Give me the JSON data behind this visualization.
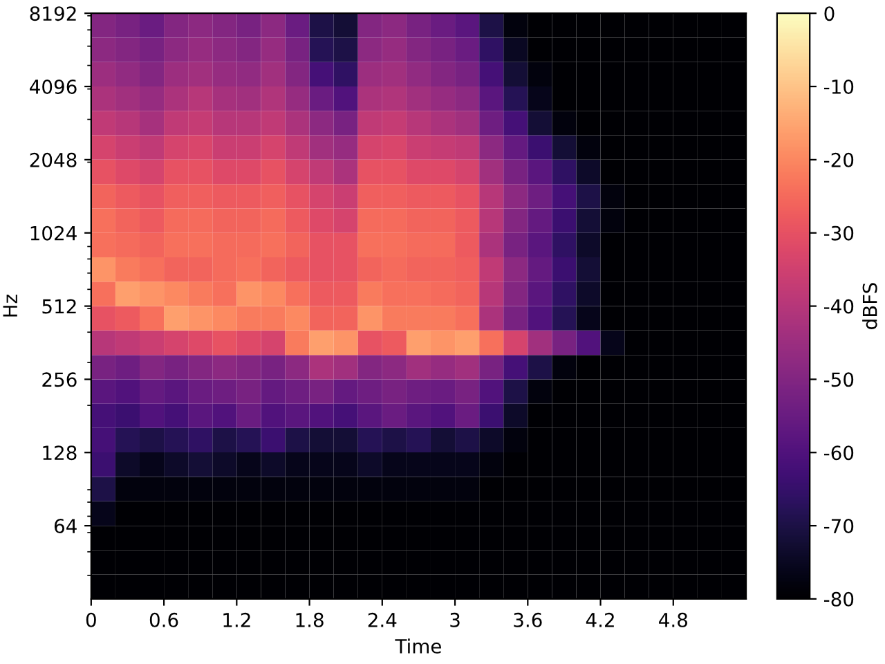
{
  "chart_data": {
    "type": "heatmap",
    "xlabel": "Time",
    "ylabel": "Hz",
    "clabel": "dBFS",
    "log": "y",
    "x": [
      0.1,
      0.3,
      0.5,
      0.7,
      0.9,
      1.1,
      1.3,
      1.5,
      1.7,
      1.9,
      2.1,
      2.3,
      2.5,
      2.7,
      2.9,
      3.1,
      3.3,
      3.5,
      3.7,
      3.9,
      4.1,
      4.3,
      4.5,
      4.7,
      4.9,
      5.1,
      5.3
    ],
    "y": [
      7298,
      5793,
      4598,
      3649,
      2896,
      2299,
      1825,
      1448,
      1149,
      912,
      724,
      575,
      456,
      362,
      287,
      228,
      181,
      144,
      114,
      90.5,
      71.8,
      57,
      45.3,
      35.9
    ],
    "xlim": [
      0,
      5.4
    ],
    "xticks": [
      0,
      0.6,
      1.2,
      1.8,
      2.4,
      3,
      3.6,
      4.2,
      4.8
    ],
    "ylim": [
      32,
      8192
    ],
    "yticks": [
      64,
      128,
      256,
      512,
      1024,
      2048,
      4096,
      8192
    ],
    "clim": [
      -80,
      0
    ],
    "cticks": [
      -80,
      -70,
      -60,
      -50,
      -40,
      -30,
      -20,
      -10,
      0
    ],
    "cells": [
      [
        -50,
        -52,
        -55,
        -50,
        -48,
        -50,
        -52,
        -48,
        -55,
        -70,
        -72,
        -50,
        -48,
        -52,
        -55,
        -58,
        -70,
        -78,
        -80,
        -80,
        -80,
        -80,
        -80,
        -80,
        -80,
        -80,
        -80
      ],
      [
        -48,
        -50,
        -52,
        -48,
        -46,
        -48,
        -50,
        -46,
        -52,
        -68,
        -70,
        -48,
        -46,
        -50,
        -52,
        -55,
        -66,
        -75,
        -80,
        -80,
        -80,
        -80,
        -80,
        -80,
        -80,
        -80,
        -80
      ],
      [
        -45,
        -47,
        -50,
        -45,
        -44,
        -46,
        -47,
        -44,
        -50,
        -62,
        -66,
        -45,
        -44,
        -47,
        -50,
        -52,
        -62,
        -72,
        -78,
        -80,
        -80,
        -80,
        -80,
        -80,
        -80,
        -80,
        -80
      ],
      [
        -42,
        -44,
        -46,
        -42,
        -40,
        -43,
        -44,
        -41,
        -46,
        -55,
        -60,
        -42,
        -41,
        -44,
        -46,
        -48,
        -58,
        -68,
        -76,
        -80,
        -80,
        -80,
        -80,
        -80,
        -80,
        -80,
        -80
      ],
      [
        -38,
        -40,
        -43,
        -38,
        -37,
        -40,
        -40,
        -38,
        -42,
        -48,
        -52,
        -38,
        -37,
        -40,
        -42,
        -44,
        -54,
        -62,
        -72,
        -78,
        -80,
        -80,
        -80,
        -80,
        -80,
        -80,
        -80
      ],
      [
        -34,
        -36,
        -38,
        -34,
        -33,
        -36,
        -36,
        -34,
        -38,
        -44,
        -46,
        -34,
        -33,
        -36,
        -37,
        -38,
        -48,
        -56,
        -64,
        -72,
        -78,
        -80,
        -80,
        -80,
        -80,
        -80,
        -80
      ],
      [
        -30,
        -32,
        -34,
        -30,
        -30,
        -32,
        -32,
        -30,
        -34,
        -38,
        -42,
        -30,
        -30,
        -32,
        -32,
        -34,
        -44,
        -52,
        -58,
        -66,
        -74,
        -80,
        -80,
        -80,
        -80,
        -80,
        -80
      ],
      [
        -26,
        -28,
        -30,
        -27,
        -27,
        -28,
        -28,
        -27,
        -30,
        -34,
        -36,
        -27,
        -27,
        -28,
        -28,
        -30,
        -40,
        -48,
        -54,
        -62,
        -70,
        -78,
        -80,
        -80,
        -80,
        -80,
        -80
      ],
      [
        -24,
        -26,
        -28,
        -25,
        -25,
        -26,
        -26,
        -25,
        -28,
        -32,
        -34,
        -25,
        -25,
        -26,
        -26,
        -28,
        -40,
        -50,
        -56,
        -64,
        -72,
        -78,
        -80,
        -80,
        -80,
        -80,
        -80
      ],
      [
        -24,
        -25,
        -26,
        -24,
        -24,
        -25,
        -25,
        -24,
        -26,
        -30,
        -30,
        -24,
        -24,
        -25,
        -25,
        -28,
        -42,
        -52,
        -58,
        -66,
        -74,
        -80,
        -80,
        -80,
        -80,
        -80,
        -80
      ],
      [
        -18,
        -22,
        -24,
        -26,
        -26,
        -25,
        -24,
        -26,
        -28,
        -30,
        -30,
        -26,
        -25,
        -26,
        -26,
        -27,
        -38,
        -48,
        -56,
        -64,
        -72,
        -80,
        -80,
        -80,
        -80,
        -80,
        -80
      ],
      [
        -24,
        -16,
        -18,
        -20,
        -22,
        -24,
        -18,
        -20,
        -24,
        -28,
        -28,
        -22,
        -24,
        -24,
        -25,
        -26,
        -40,
        -50,
        -58,
        -66,
        -74,
        -80,
        -80,
        -80,
        -80,
        -80,
        -80
      ],
      [
        -30,
        -28,
        -24,
        -16,
        -18,
        -20,
        -22,
        -22,
        -20,
        -26,
        -26,
        -18,
        -22,
        -22,
        -22,
        -24,
        -42,
        -52,
        -60,
        -68,
        -76,
        -80,
        -80,
        -80,
        -80,
        -80,
        -80
      ],
      [
        -40,
        -38,
        -36,
        -34,
        -32,
        -30,
        -32,
        -34,
        -22,
        -16,
        -18,
        -30,
        -28,
        -16,
        -18,
        -16,
        -24,
        -34,
        -44,
        -52,
        -60,
        -76,
        -80,
        -80,
        -80,
        -80,
        -80
      ],
      [
        -52,
        -54,
        -50,
        -52,
        -50,
        -48,
        -50,
        -52,
        -48,
        -42,
        -44,
        -50,
        -48,
        -44,
        -46,
        -44,
        -52,
        -62,
        -70,
        -78,
        -80,
        -80,
        -80,
        -80,
        -80,
        -80,
        -80
      ],
      [
        -58,
        -60,
        -56,
        -58,
        -55,
        -54,
        -52,
        -56,
        -54,
        -52,
        -56,
        -54,
        -52,
        -54,
        -55,
        -52,
        -60,
        -70,
        -78,
        -80,
        -80,
        -80,
        -80,
        -80,
        -80,
        -80,
        -80
      ],
      [
        -62,
        -64,
        -60,
        -62,
        -58,
        -60,
        -55,
        -60,
        -58,
        -60,
        -62,
        -58,
        -55,
        -58,
        -60,
        -55,
        -64,
        -74,
        -80,
        -80,
        -80,
        -80,
        -80,
        -80,
        -80,
        -80,
        -80
      ],
      [
        -62,
        -68,
        -70,
        -68,
        -66,
        -70,
        -68,
        -64,
        -70,
        -72,
        -72,
        -68,
        -70,
        -68,
        -72,
        -70,
        -74,
        -78,
        -80,
        -80,
        -80,
        -80,
        -80,
        -80,
        -80,
        -80,
        -80
      ],
      [
        -64,
        -74,
        -76,
        -74,
        -72,
        -74,
        -76,
        -74,
        -76,
        -76,
        -76,
        -74,
        -76,
        -76,
        -76,
        -76,
        -78,
        -80,
        -80,
        -80,
        -80,
        -80,
        -80,
        -80,
        -80,
        -80,
        -80
      ],
      [
        -70,
        -78,
        -78,
        -78,
        -78,
        -78,
        -78,
        -78,
        -78,
        -78,
        -78,
        -78,
        -78,
        -78,
        -78,
        -78,
        -80,
        -80,
        -80,
        -80,
        -80,
        -80,
        -80,
        -80,
        -80,
        -80,
        -80
      ],
      [
        -76,
        -80,
        -80,
        -80,
        -80,
        -80,
        -80,
        -80,
        -80,
        -80,
        -80,
        -80,
        -80,
        -80,
        -80,
        -80,
        -80,
        -80,
        -80,
        -80,
        -80,
        -80,
        -80,
        -80,
        -80,
        -80,
        -80
      ],
      [
        -80,
        -80,
        -80,
        -80,
        -80,
        -80,
        -80,
        -80,
        -80,
        -80,
        -80,
        -80,
        -80,
        -80,
        -80,
        -80,
        -80,
        -80,
        -80,
        -80,
        -80,
        -80,
        -80,
        -80,
        -80,
        -80,
        -80
      ],
      [
        -80,
        -80,
        -80,
        -80,
        -80,
        -80,
        -80,
        -80,
        -80,
        -80,
        -80,
        -80,
        -80,
        -80,
        -80,
        -80,
        -80,
        -80,
        -80,
        -80,
        -80,
        -80,
        -80,
        -80,
        -80,
        -80,
        -80
      ],
      [
        -80,
        -80,
        -80,
        -80,
        -80,
        -80,
        -80,
        -80,
        -80,
        -80,
        -80,
        -80,
        -80,
        -80,
        -80,
        -80,
        -80,
        -80,
        -80,
        -80,
        -80,
        -80,
        -80,
        -80,
        -80,
        -80,
        -80
      ]
    ]
  }
}
